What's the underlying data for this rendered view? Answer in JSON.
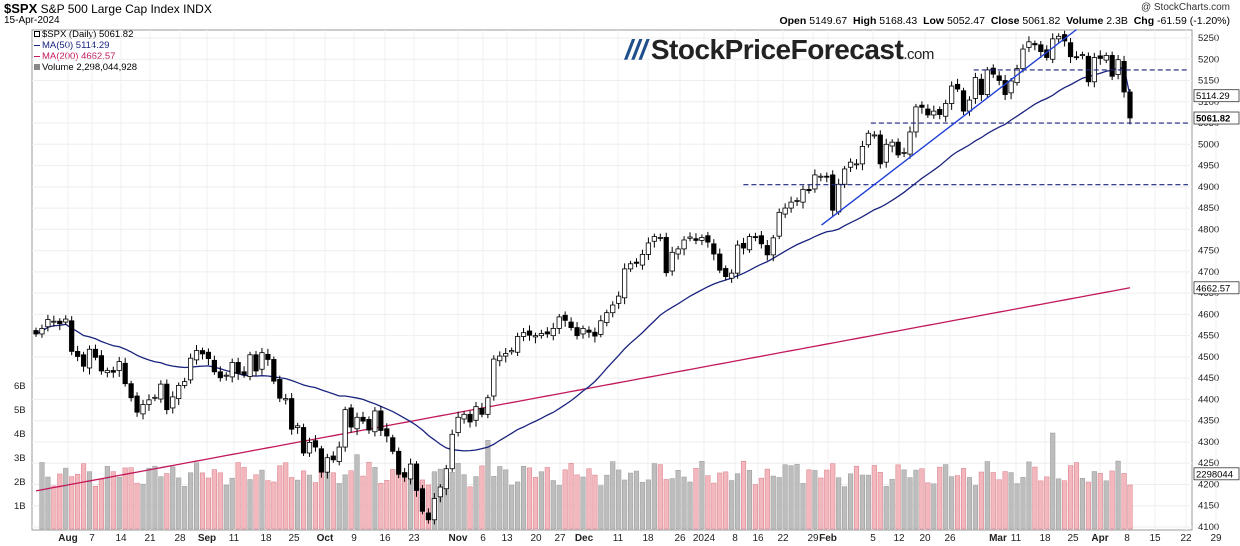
{
  "header": {
    "symbol": "$SPX",
    "name": "S&P 500 Large Cap Index",
    "exchange": "INDX",
    "date": "15-Apr-2024",
    "open_label": "Open",
    "open": "5149.67",
    "high_label": "High",
    "high": "5168.43",
    "low_label": "Low",
    "low": "5052.47",
    "close_label": "Close",
    "close": "5061.82",
    "volume_label": "Volume",
    "volume": "2.3B",
    "chg_label": "Chg",
    "chg": "-61.59 (-1.20%)",
    "credit": "@ StockCharts.com"
  },
  "legend": {
    "price": "$SPX (Daily) 5061.82",
    "ma50": "MA(50) 5114.29",
    "ma200": "MA(200) 4662.57",
    "volume": "Volume 2,298,044,928"
  },
  "watermark": {
    "slash": "///",
    "name": "StockPriceForecast",
    "tld": ".com"
  },
  "colors": {
    "ma50": "#1a237e",
    "ma200": "#c2185b",
    "trend": "#1e3fd6",
    "level": "#1a237e",
    "vol_up": "#bdbdbd",
    "vol_down": "#f2b8be"
  },
  "chart_data": {
    "type": "candlestick",
    "title": "$SPX S&P 500 Large Cap Index",
    "date_range": [
      "2023-07-24",
      "2024-04-15"
    ],
    "ylim": [
      4090,
      5290
    ],
    "y_ticks": [
      4100,
      4150,
      4200,
      4250,
      4300,
      4350,
      4400,
      4450,
      4500,
      4550,
      4600,
      4650,
      4700,
      4750,
      4800,
      4850,
      4900,
      4950,
      5000,
      5050,
      5100,
      5150,
      5200,
      5250
    ],
    "volume_ticks": [
      "1B",
      "2B",
      "3B",
      "4B",
      "5B",
      "6B"
    ],
    "x_ticks": [
      "Aug",
      "7",
      "14",
      "21",
      "28",
      "Sep",
      "11",
      "18",
      "25",
      "Oct",
      "9",
      "16",
      "23",
      "Nov",
      "6",
      "13",
      "20",
      "27",
      "Dec",
      "11",
      "18",
      "26",
      "2024",
      "8",
      "16",
      "22",
      "29",
      "Feb",
      "5",
      "12",
      "20",
      "26",
      "Mar",
      "11",
      "18",
      "25",
      "Apr",
      "8",
      "15",
      "22",
      "29"
    ],
    "price_labels": [
      {
        "value": 5114.29,
        "text": "5114.29"
      },
      {
        "value": 5061.82,
        "text": "5061.82"
      },
      {
        "value": 4662.57,
        "text": "4662.57"
      }
    ],
    "volume_label": "2298044",
    "closes": [
      4554,
      4567,
      4588,
      4584,
      4578,
      4589,
      4513,
      4501,
      4478,
      4518,
      4499,
      4467,
      4468,
      4464,
      4489,
      4437,
      4404,
      4370,
      4388,
      4399,
      4405,
      4436,
      4376,
      4406,
      4433,
      4442,
      4497,
      4515,
      4507,
      4496,
      4465,
      4451,
      4457,
      4487,
      4461,
      4458,
      4505,
      4467,
      4510,
      4494,
      4443,
      4403,
      4402,
      4330,
      4338,
      4274,
      4299,
      4288,
      4229,
      4263,
      4258,
      4288,
      4376,
      4335,
      4358,
      4349,
      4328,
      4373,
      4327,
      4314,
      4278,
      4224,
      4217,
      4248,
      4186,
      4137,
      4117,
      4167,
      4194,
      4237,
      4318,
      4358,
      4365,
      4347,
      4383,
      4365,
      4404,
      4495,
      4502,
      4508,
      4515,
      4548,
      4557,
      4551,
      4550,
      4555,
      4554,
      4567,
      4594,
      4586,
      4569,
      4550,
      4567,
      4558,
      4549,
      4585,
      4604,
      4622,
      4643,
      4707,
      4719,
      4720,
      4741,
      4768,
      4783,
      4781,
      4698,
      4746,
      4754,
      4775,
      4782,
      4774,
      4781,
      4770,
      4742,
      4704,
      4689,
      4697,
      4763,
      4756,
      4783,
      4781,
      4766,
      4740,
      4780,
      4840,
      4850,
      4864,
      4868,
      4894,
      4891,
      4928,
      4925,
      4924,
      4845,
      4906,
      4942,
      4958,
      4954,
      4995,
      5026,
      5022,
      4954,
      5000,
      5005,
      4975,
      4981,
      5029,
      5088,
      5087,
      5069,
      5078,
      5070,
      5096,
      5137,
      5130,
      5078,
      5104,
      5157,
      5117,
      5175,
      5165,
      5150,
      5117,
      5149,
      5178,
      5224,
      5241,
      5234,
      5218,
      5204,
      5248,
      5254,
      5243,
      5206,
      5205,
      5211,
      5147,
      5204,
      5202,
      5209,
      5160,
      5199,
      5123,
      5062
    ],
    "ma50_last": 5114.29,
    "ma200_last": 4662.57,
    "trendline": [
      {
        "date": "2024-01-31",
        "value": 4810
      },
      {
        "date": "2024-04-02",
        "value": 5270
      }
    ],
    "support_levels": [
      {
        "value": 5175,
        "from": "2024-03-08",
        "to": "2024-04-15"
      },
      {
        "value": 5050,
        "from": "2024-02-12",
        "to": "2024-04-15"
      },
      {
        "value": 4905,
        "from": "2024-01-12",
        "to": "2024-04-15"
      }
    ]
  }
}
